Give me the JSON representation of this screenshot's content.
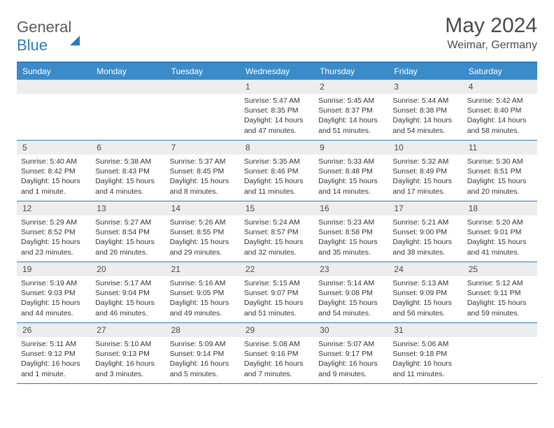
{
  "brand": {
    "part1": "General",
    "part2": "Blue"
  },
  "title": "May 2024",
  "location": "Weimar, Germany",
  "colors": {
    "header_bg": "#3b8bc8",
    "accent": "#2b7bbf",
    "daynum_bg": "#ecedee",
    "text": "#4a4a4a"
  },
  "day_labels": [
    "Sunday",
    "Monday",
    "Tuesday",
    "Wednesday",
    "Thursday",
    "Friday",
    "Saturday"
  ],
  "weeks": [
    [
      {
        "n": "",
        "sr": "",
        "ss": "",
        "dl": ""
      },
      {
        "n": "",
        "sr": "",
        "ss": "",
        "dl": ""
      },
      {
        "n": "",
        "sr": "",
        "ss": "",
        "dl": ""
      },
      {
        "n": "1",
        "sr": "Sunrise: 5:47 AM",
        "ss": "Sunset: 8:35 PM",
        "dl": "Daylight: 14 hours and 47 minutes."
      },
      {
        "n": "2",
        "sr": "Sunrise: 5:45 AM",
        "ss": "Sunset: 8:37 PM",
        "dl": "Daylight: 14 hours and 51 minutes."
      },
      {
        "n": "3",
        "sr": "Sunrise: 5:44 AM",
        "ss": "Sunset: 8:38 PM",
        "dl": "Daylight: 14 hours and 54 minutes."
      },
      {
        "n": "4",
        "sr": "Sunrise: 5:42 AM",
        "ss": "Sunset: 8:40 PM",
        "dl": "Daylight: 14 hours and 58 minutes."
      }
    ],
    [
      {
        "n": "5",
        "sr": "Sunrise: 5:40 AM",
        "ss": "Sunset: 8:42 PM",
        "dl": "Daylight: 15 hours and 1 minute."
      },
      {
        "n": "6",
        "sr": "Sunrise: 5:38 AM",
        "ss": "Sunset: 8:43 PM",
        "dl": "Daylight: 15 hours and 4 minutes."
      },
      {
        "n": "7",
        "sr": "Sunrise: 5:37 AM",
        "ss": "Sunset: 8:45 PM",
        "dl": "Daylight: 15 hours and 8 minutes."
      },
      {
        "n": "8",
        "sr": "Sunrise: 5:35 AM",
        "ss": "Sunset: 8:46 PM",
        "dl": "Daylight: 15 hours and 11 minutes."
      },
      {
        "n": "9",
        "sr": "Sunrise: 5:33 AM",
        "ss": "Sunset: 8:48 PM",
        "dl": "Daylight: 15 hours and 14 minutes."
      },
      {
        "n": "10",
        "sr": "Sunrise: 5:32 AM",
        "ss": "Sunset: 8:49 PM",
        "dl": "Daylight: 15 hours and 17 minutes."
      },
      {
        "n": "11",
        "sr": "Sunrise: 5:30 AM",
        "ss": "Sunset: 8:51 PM",
        "dl": "Daylight: 15 hours and 20 minutes."
      }
    ],
    [
      {
        "n": "12",
        "sr": "Sunrise: 5:29 AM",
        "ss": "Sunset: 8:52 PM",
        "dl": "Daylight: 15 hours and 23 minutes."
      },
      {
        "n": "13",
        "sr": "Sunrise: 5:27 AM",
        "ss": "Sunset: 8:54 PM",
        "dl": "Daylight: 15 hours and 26 minutes."
      },
      {
        "n": "14",
        "sr": "Sunrise: 5:26 AM",
        "ss": "Sunset: 8:55 PM",
        "dl": "Daylight: 15 hours and 29 minutes."
      },
      {
        "n": "15",
        "sr": "Sunrise: 5:24 AM",
        "ss": "Sunset: 8:57 PM",
        "dl": "Daylight: 15 hours and 32 minutes."
      },
      {
        "n": "16",
        "sr": "Sunrise: 5:23 AM",
        "ss": "Sunset: 8:58 PM",
        "dl": "Daylight: 15 hours and 35 minutes."
      },
      {
        "n": "17",
        "sr": "Sunrise: 5:21 AM",
        "ss": "Sunset: 9:00 PM",
        "dl": "Daylight: 15 hours and 38 minutes."
      },
      {
        "n": "18",
        "sr": "Sunrise: 5:20 AM",
        "ss": "Sunset: 9:01 PM",
        "dl": "Daylight: 15 hours and 41 minutes."
      }
    ],
    [
      {
        "n": "19",
        "sr": "Sunrise: 5:19 AM",
        "ss": "Sunset: 9:03 PM",
        "dl": "Daylight: 15 hours and 44 minutes."
      },
      {
        "n": "20",
        "sr": "Sunrise: 5:17 AM",
        "ss": "Sunset: 9:04 PM",
        "dl": "Daylight: 15 hours and 46 minutes."
      },
      {
        "n": "21",
        "sr": "Sunrise: 5:16 AM",
        "ss": "Sunset: 9:05 PM",
        "dl": "Daylight: 15 hours and 49 minutes."
      },
      {
        "n": "22",
        "sr": "Sunrise: 5:15 AM",
        "ss": "Sunset: 9:07 PM",
        "dl": "Daylight: 15 hours and 51 minutes."
      },
      {
        "n": "23",
        "sr": "Sunrise: 5:14 AM",
        "ss": "Sunset: 9:08 PM",
        "dl": "Daylight: 15 hours and 54 minutes."
      },
      {
        "n": "24",
        "sr": "Sunrise: 5:13 AM",
        "ss": "Sunset: 9:09 PM",
        "dl": "Daylight: 15 hours and 56 minutes."
      },
      {
        "n": "25",
        "sr": "Sunrise: 5:12 AM",
        "ss": "Sunset: 9:11 PM",
        "dl": "Daylight: 15 hours and 59 minutes."
      }
    ],
    [
      {
        "n": "26",
        "sr": "Sunrise: 5:11 AM",
        "ss": "Sunset: 9:12 PM",
        "dl": "Daylight: 16 hours and 1 minute."
      },
      {
        "n": "27",
        "sr": "Sunrise: 5:10 AM",
        "ss": "Sunset: 9:13 PM",
        "dl": "Daylight: 16 hours and 3 minutes."
      },
      {
        "n": "28",
        "sr": "Sunrise: 5:09 AM",
        "ss": "Sunset: 9:14 PM",
        "dl": "Daylight: 16 hours and 5 minutes."
      },
      {
        "n": "29",
        "sr": "Sunrise: 5:08 AM",
        "ss": "Sunset: 9:16 PM",
        "dl": "Daylight: 16 hours and 7 minutes."
      },
      {
        "n": "30",
        "sr": "Sunrise: 5:07 AM",
        "ss": "Sunset: 9:17 PM",
        "dl": "Daylight: 16 hours and 9 minutes."
      },
      {
        "n": "31",
        "sr": "Sunrise: 5:06 AM",
        "ss": "Sunset: 9:18 PM",
        "dl": "Daylight: 16 hours and 11 minutes."
      },
      {
        "n": "",
        "sr": "",
        "ss": "",
        "dl": ""
      }
    ]
  ]
}
